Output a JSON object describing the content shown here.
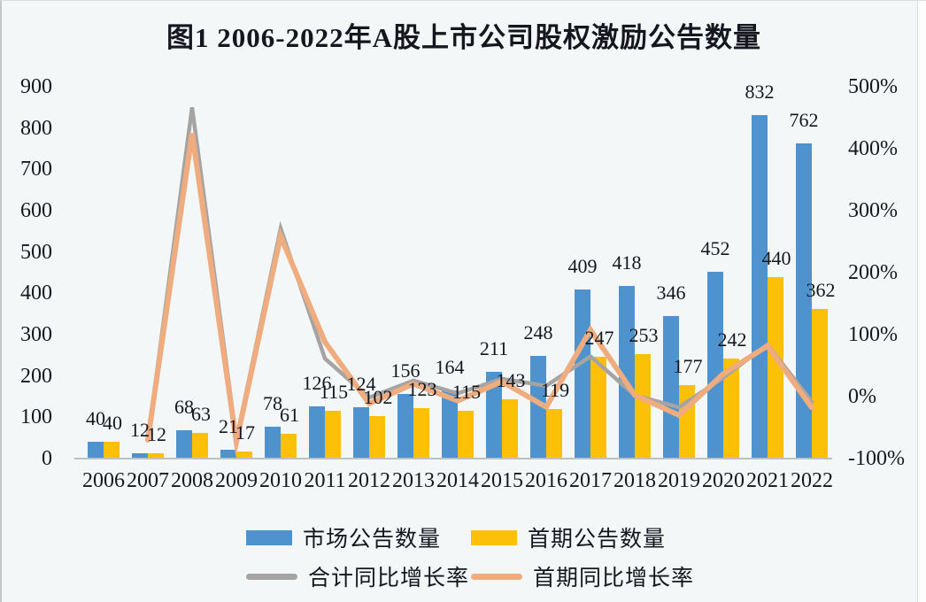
{
  "title": "图1  2006-2022年A股上市公司股权激励公告数量",
  "chart_data": {
    "type": "bar+line combo",
    "title": "图1  2006-2022年A股上市公司股权激励公告数量",
    "categories": [
      "2006",
      "2007",
      "2008",
      "2009",
      "2010",
      "2011",
      "2012",
      "2013",
      "2014",
      "2015",
      "2016",
      "2017",
      "2018",
      "2019",
      "2020",
      "2021",
      "2022"
    ],
    "series": [
      {
        "name": "市场公告数量",
        "type": "bar",
        "axis": "left",
        "color": "#4f93ce",
        "values": [
          40,
          12,
          68,
          21,
          78,
          126,
          124,
          156,
          164,
          211,
          248,
          409,
          418,
          346,
          452,
          832,
          762
        ]
      },
      {
        "name": "首期公告数量",
        "type": "bar",
        "axis": "left",
        "color": "#fcc006",
        "values": [
          40,
          12,
          63,
          17,
          61,
          115,
          102,
          123,
          115,
          143,
          119,
          247,
          253,
          177,
          242,
          440,
          362
        ]
      },
      {
        "name": "合计同比增长率",
        "type": "line",
        "axis": "right",
        "color": "#a6a4a2",
        "values": [
          null,
          -70.0,
          466.7,
          -69.1,
          271.4,
          61.5,
          -1.6,
          25.8,
          5.1,
          28.7,
          17.5,
          64.9,
          2.2,
          -17.2,
          30.6,
          84.1,
          -8.4
        ]
      },
      {
        "name": "首期同比增长率",
        "type": "line",
        "axis": "right",
        "color": "#efac7e",
        "values": [
          null,
          -70.0,
          425.0,
          -73.0,
          258.8,
          88.5,
          -11.3,
          20.6,
          -6.5,
          24.3,
          -16.8,
          107.6,
          2.4,
          -30.0,
          36.7,
          81.8,
          -17.7
        ]
      }
    ],
    "left_axis": {
      "min": 0,
      "max": 900,
      "step": 100,
      "ticks": [
        "900",
        "800",
        "700",
        "600",
        "500",
        "400",
        "300",
        "200",
        "100",
        "0"
      ]
    },
    "right_axis": {
      "min": -100,
      "max": 500,
      "step": 100,
      "unit": "%",
      "ticks": [
        "500%",
        "400%",
        "300%",
        "200%",
        "100%",
        "0%",
        "-100%"
      ]
    },
    "grid": false,
    "legend_position": "bottom",
    "value_labels_shown": true
  }
}
